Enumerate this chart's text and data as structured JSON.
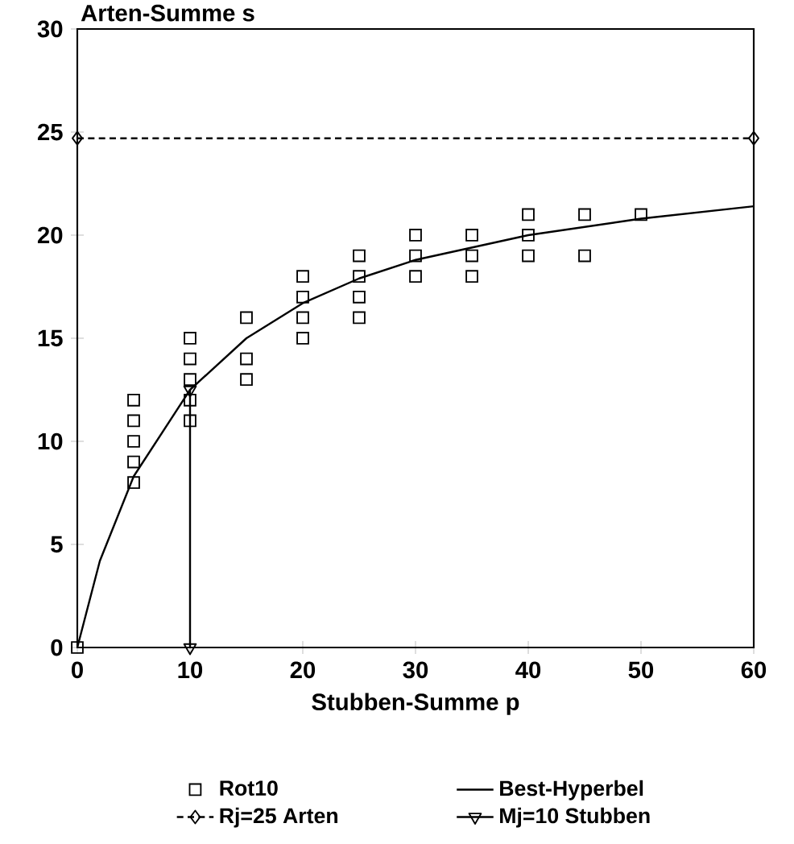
{
  "chart_data": {
    "type": "scatter",
    "xlabel": "Stubben-Summe p",
    "ylabel": "Arten-Summe s",
    "xlim": [
      0,
      60
    ],
    "ylim": [
      0,
      30
    ],
    "xticks": [
      0,
      10,
      20,
      30,
      40,
      50,
      60
    ],
    "yticks": [
      0,
      5,
      10,
      15,
      20,
      25,
      30
    ],
    "grid": false,
    "legend": "bottom",
    "series": [
      {
        "name": "Rot10",
        "color": "#000000",
        "marker": "square",
        "x": [
          0,
          5,
          5,
          5,
          5,
          5,
          10,
          10,
          10,
          10,
          10,
          15,
          15,
          15,
          20,
          20,
          20,
          20,
          25,
          25,
          25,
          25,
          30,
          30,
          30,
          35,
          35,
          35,
          40,
          40,
          40,
          45,
          45,
          50
        ],
        "values": [
          0,
          8,
          9,
          10,
          11,
          12,
          11,
          12,
          13,
          14,
          15,
          13,
          14,
          16,
          15,
          16,
          17,
          18,
          16,
          17,
          18,
          19,
          18,
          19,
          20,
          18,
          19,
          20,
          19,
          20,
          21,
          19,
          21,
          21
        ]
      },
      {
        "type": "line",
        "name": "Best-Hyperbel",
        "color": "#000000",
        "marker": "none",
        "line_style": "solid",
        "x": [
          0,
          2,
          5,
          10,
          15,
          20,
          25,
          30,
          40,
          50,
          60
        ],
        "values": [
          0,
          4.2,
          8.3,
          12.5,
          15,
          16.7,
          17.9,
          18.8,
          20,
          20.8,
          21.4
        ]
      },
      {
        "type": "line",
        "name": "Rj=25 Arten",
        "color": "#000000",
        "marker": "diamond",
        "line_style": "dashed",
        "x": [
          0,
          60
        ],
        "values": [
          24.7,
          24.7
        ]
      },
      {
        "type": "line",
        "name": "Mj=10 Stubben",
        "color": "#000000",
        "marker": "triangle",
        "line_style": "solid",
        "x": [
          10,
          10
        ],
        "values": [
          0,
          12.5
        ]
      }
    ]
  }
}
